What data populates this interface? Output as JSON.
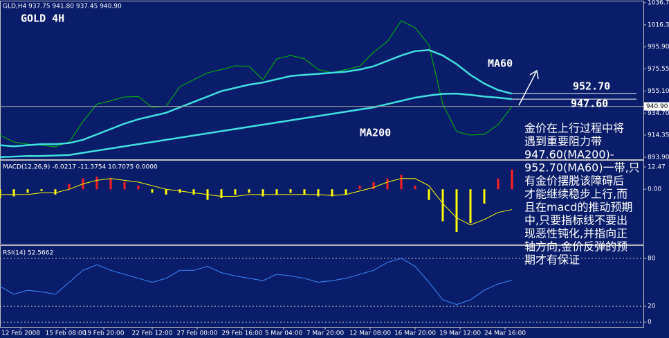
{
  "chart_data": [
    {
      "type": "line",
      "title": "GLD,H4 937.75 941.80 937.45 940.90",
      "subtitle": "GOLD 4H",
      "x": [
        0,
        4,
        8,
        12,
        16,
        20,
        24,
        28,
        32,
        36,
        40,
        44,
        48,
        52,
        56,
        60,
        64,
        68,
        72,
        76,
        80,
        84,
        88,
        92,
        96,
        100,
        104,
        108,
        112,
        116,
        120,
        124,
        128,
        132,
        136,
        140,
        144,
        148
      ],
      "xlim": [
        0,
        186
      ],
      "series": [
        {
          "color": "#00c000",
          "width": 1,
          "values": [
            914.4,
            908,
            906,
            905,
            903.5,
            908,
            927,
            943,
            946,
            949.6,
            950,
            940,
            941,
            959,
            965.6,
            972,
            975,
            978.4,
            978,
            965.6,
            984.8,
            988,
            985,
            975,
            972,
            975,
            978,
            991,
            1000.8,
            1020,
            1013.6,
            997.6,
            943,
            917.6,
            914.4,
            915,
            924,
            940.9
          ]
        },
        {
          "color": "#40e0e0",
          "width": 2.5,
          "values": [
            905,
            904,
            905,
            906,
            906,
            907,
            910,
            915,
            920,
            925,
            929,
            932,
            935,
            940,
            945,
            950,
            955,
            958,
            961,
            963,
            966,
            969,
            970,
            971,
            972,
            973,
            975,
            978,
            983,
            988,
            992,
            993,
            988,
            980,
            970,
            962,
            956,
            952.7
          ]
        },
        {
          "color": "#40e0e0",
          "width": 2.5,
          "values": [
            894,
            894.5,
            895,
            895,
            895.5,
            896,
            898,
            900,
            902,
            904,
            906,
            908,
            910,
            912,
            914,
            916,
            918,
            920,
            922,
            924,
            926,
            928,
            930,
            932,
            934,
            936,
            938,
            940,
            943,
            946,
            949,
            951,
            952.5,
            952.7,
            951.5,
            950,
            949,
            947.6
          ]
        }
      ],
      "ylim": [
        893.9,
        1036.7
      ],
      "yticks": [
        {
          "value": 1036.7,
          "label": "1036.70"
        },
        1016.35,
        {
          "value": 995.9,
          "label": "995.90"
        },
        975.55,
        {
          "value": 955.1,
          "label": "955.10"
        },
        {
          "value": 934.7,
          "label": "934.70"
        },
        914.35,
        {
          "value": 893.9,
          "label": "893.90"
        }
      ],
      "current_price": {
        "value": 940.9,
        "label": "940.90"
      },
      "levels": [
        {
          "value": 952.7,
          "label": "952.70"
        },
        {
          "value": 947.6,
          "label": "947.60"
        }
      ],
      "annotations": {
        "ma60": "MA60",
        "ma200": "MA200",
        "note": [
          "金价在上行过程中将",
          "遇到重要阻力带",
          "947.60(MA200)-",
          "952.70(MA60)一带,只",
          "有金价摆脱该障碍后",
          "才能继续稳步上行,而",
          "且在macd的推动预期",
          "中,只要指标线不要出",
          "现恶性钝化,并指向正",
          "轴方向,金价反弹的预",
          "期才有保证"
        ]
      }
    },
    {
      "type": "macd",
      "title": "MACD(12,26,9) -6.0217 -11.3754 10.7075 0.0000",
      "x": [
        0,
        4,
        8,
        12,
        16,
        20,
        24,
        28,
        32,
        36,
        40,
        44,
        48,
        52,
        56,
        60,
        64,
        68,
        72,
        76,
        80,
        84,
        88,
        92,
        96,
        100,
        104,
        108,
        112,
        116,
        120,
        124,
        128,
        132,
        136,
        140,
        144,
        148
      ],
      "xlim": [
        0,
        186
      ],
      "histogram": {
        "color": "#ff2020",
        "negative_color": "#ffff00",
        "values": [
          -5,
          -4,
          -2,
          -1,
          -3,
          3,
          6,
          7,
          6,
          4,
          2,
          -2,
          -3,
          -2,
          -3,
          -6,
          -5,
          -3,
          -2,
          -4,
          -3,
          -2,
          -3,
          -4,
          -4,
          -3,
          2,
          4,
          6,
          8,
          2,
          -6,
          -18,
          -24,
          -19,
          -8,
          6,
          11
        ]
      },
      "signal": {
        "color": "#ffff00",
        "values": [
          -3,
          -3,
          -3,
          -2,
          -2,
          0,
          3,
          5,
          6,
          5,
          4,
          2,
          0,
          -1,
          -2,
          -3,
          -4,
          -4,
          -3,
          -3,
          -3,
          -3,
          -3,
          -3,
          -3.5,
          -3,
          -1,
          1,
          4,
          6,
          6,
          2,
          -8,
          -16,
          -20,
          -17,
          -13,
          -11.4
        ]
      },
      "ylim": [
        -30.6,
        16
      ],
      "yticks": [
        12.47,
        {
          "value": 0,
          "label": "0.00"
        }
      ]
    },
    {
      "type": "line",
      "title": "RSI(14) 52.5662",
      "x": [
        0,
        4,
        8,
        12,
        16,
        20,
        24,
        28,
        32,
        36,
        40,
        44,
        48,
        52,
        56,
        60,
        64,
        68,
        72,
        76,
        80,
        84,
        88,
        92,
        96,
        100,
        104,
        108,
        112,
        116,
        120,
        124,
        128,
        132,
        136,
        140,
        144,
        148
      ],
      "xlim": [
        0,
        186
      ],
      "series": [
        {
          "color": "#3a8cff",
          "width": 1,
          "values": [
            45,
            35,
            40,
            38,
            35,
            50,
            65,
            72,
            65,
            60,
            55,
            50,
            55,
            65,
            65,
            70,
            62,
            58,
            55,
            52,
            60,
            58,
            55,
            50,
            52,
            55,
            60,
            65,
            75,
            80,
            70,
            50,
            28,
            22,
            28,
            40,
            48,
            52.6
          ]
        }
      ],
      "ylim": [
        -6,
        94.8
      ],
      "yticks": [
        80,
        20,
        0
      ],
      "grid": true,
      "xticks": [
        {
          "value": 6,
          "label": "12 Feb 2008"
        },
        {
          "value": 19,
          "label": "15 Feb 08:00"
        },
        {
          "value": 30,
          "label": "19 Feb 20:00"
        },
        {
          "value": 44,
          "label": "22 Feb 12:00"
        },
        {
          "value": 57,
          "label": "27 Feb 00:00"
        },
        {
          "value": 70,
          "label": "29 Feb 16:00"
        },
        {
          "value": 82,
          "label": "5 Mar 04:00"
        },
        {
          "value": 94,
          "label": "7 Mar 20:00"
        },
        {
          "value": 107,
          "label": "12 Mar 08:00"
        },
        {
          "value": 120,
          "label": "16 Mar 20:00"
        },
        {
          "value": 133,
          "label": "19 Mar 12:00"
        },
        {
          "value": 146,
          "label": "24 Mar 16:00"
        }
      ]
    }
  ]
}
